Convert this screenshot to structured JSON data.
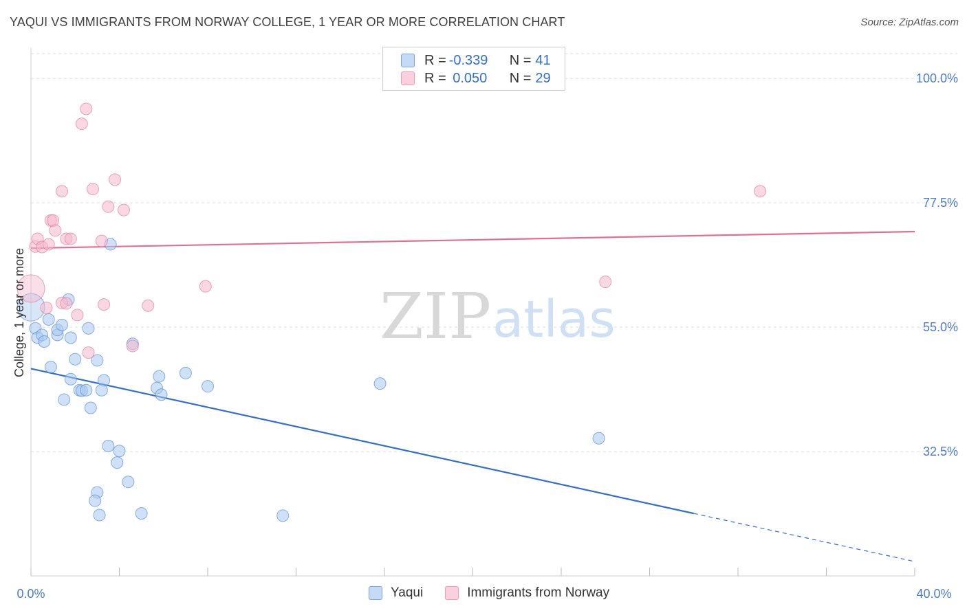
{
  "header": {
    "title": "YAQUI VS IMMIGRANTS FROM NORWAY COLLEGE, 1 YEAR OR MORE CORRELATION CHART",
    "source": "Source: ZipAtlas.com"
  },
  "watermark": {
    "zip": "ZIP",
    "atlas": "atlas"
  },
  "legend": {
    "rows": [
      {
        "r_label": "R = ",
        "r_value": "-0.339",
        "n_label": "N = ",
        "n_value": "41",
        "color": "#a8c8f0"
      },
      {
        "r_label": "R = ",
        "r_value": " 0.050",
        "n_label": "N = ",
        "n_value": "29",
        "color": "#f6b8cc"
      }
    ]
  },
  "bottom_legend": {
    "series_a": "Yaqui",
    "series_b": "Immigrants from Norway"
  },
  "colors": {
    "yaqui_fill": "#a8c8f0",
    "yaqui_stroke": "#5b8fd6",
    "yaqui_line": "#2f6fd1",
    "norway_fill": "#f6b8cc",
    "norway_stroke": "#e07ea0",
    "norway_line": "#e46d96",
    "grid": "#dddddd",
    "tick_text": "#4a7cc9"
  },
  "chart_data": {
    "type": "scatter",
    "title": "YAQUI VS IMMIGRANTS FROM NORWAY COLLEGE, 1 YEAR OR MORE CORRELATION CHART",
    "xlabel": "",
    "ylabel": "College, 1 year or more",
    "xlim": [
      0,
      40
    ],
    "ylim": [
      10,
      105.5
    ],
    "x_tick_labels": [
      "0.0%",
      "40.0%"
    ],
    "y_ticks": [
      32.5,
      55.0,
      77.5,
      100.0
    ],
    "y_tick_labels": [
      "32.5%",
      "55.0%",
      "77.5%",
      "100.0%"
    ],
    "series": [
      {
        "name": "Yaqui",
        "points": [
          [
            0.0,
            58.6
          ],
          [
            0.2,
            54.8
          ],
          [
            0.3,
            53.1
          ],
          [
            0.5,
            53.6
          ],
          [
            0.6,
            52.4
          ],
          [
            0.8,
            56.4
          ],
          [
            0.9,
            47.8
          ],
          [
            1.2,
            53.6
          ],
          [
            1.2,
            54.5
          ],
          [
            1.4,
            55.4
          ],
          [
            1.5,
            41.9
          ],
          [
            1.7,
            60.0
          ],
          [
            1.8,
            53.1
          ],
          [
            1.8,
            45.6
          ],
          [
            2.0,
            49.2
          ],
          [
            2.2,
            43.6
          ],
          [
            2.3,
            43.5
          ],
          [
            2.5,
            43.6
          ],
          [
            2.6,
            54.8
          ],
          [
            2.7,
            40.4
          ],
          [
            3.0,
            49.0
          ],
          [
            3.0,
            25.1
          ],
          [
            3.1,
            21.0
          ],
          [
            3.3,
            45.4
          ],
          [
            3.5,
            33.5
          ],
          [
            3.6,
            70.0
          ],
          [
            3.9,
            30.5
          ],
          [
            4.0,
            32.6
          ],
          [
            4.4,
            27.0
          ],
          [
            4.6,
            52.0
          ],
          [
            5.0,
            21.3
          ],
          [
            5.7,
            44.0
          ],
          [
            5.8,
            46.1
          ],
          [
            5.9,
            42.8
          ],
          [
            7.0,
            46.7
          ],
          [
            8.0,
            44.3
          ],
          [
            11.4,
            20.9
          ],
          [
            15.8,
            44.8
          ],
          [
            25.7,
            34.9
          ],
          [
            2.9,
            23.6
          ],
          [
            3.2,
            43.6
          ]
        ]
      },
      {
        "name": "Immigrants from Norway",
        "points": [
          [
            0.0,
            62.0
          ],
          [
            0.2,
            69.6
          ],
          [
            0.3,
            71.0
          ],
          [
            0.5,
            69.5
          ],
          [
            0.7,
            58.5
          ],
          [
            0.8,
            70.0
          ],
          [
            0.9,
            74.3
          ],
          [
            1.0,
            74.3
          ],
          [
            1.1,
            72.5
          ],
          [
            1.4,
            59.4
          ],
          [
            1.4,
            79.6
          ],
          [
            1.6,
            59.3
          ],
          [
            1.6,
            71.0
          ],
          [
            1.8,
            71.0
          ],
          [
            2.1,
            57.2
          ],
          [
            2.3,
            91.8
          ],
          [
            2.5,
            94.5
          ],
          [
            2.6,
            50.4
          ],
          [
            2.8,
            80.0
          ],
          [
            3.2,
            70.6
          ],
          [
            3.3,
            59.1
          ],
          [
            3.5,
            76.8
          ],
          [
            3.8,
            81.7
          ],
          [
            4.2,
            76.2
          ],
          [
            4.6,
            51.6
          ],
          [
            5.3,
            58.9
          ],
          [
            7.9,
            62.4
          ],
          [
            26.0,
            63.2
          ],
          [
            33.0,
            79.6
          ]
        ]
      }
    ],
    "trendlines": [
      {
        "series": "Yaqui",
        "x0": 0,
        "y0": 47.5,
        "x1": 30,
        "y1": 21.3,
        "dashed_to_x": 40,
        "dashed_to_y": 12.6
      },
      {
        "series": "Immigrants from Norway",
        "x0": 0,
        "y0": 69.3,
        "x1": 40,
        "y1": 72.3
      }
    ]
  }
}
